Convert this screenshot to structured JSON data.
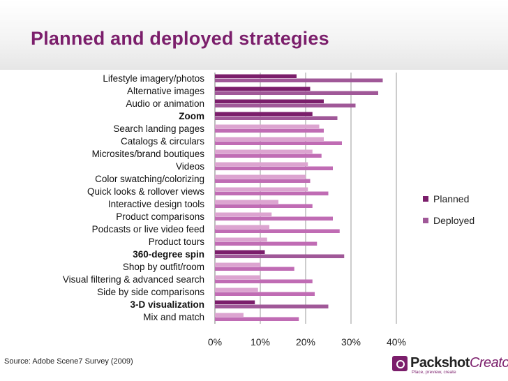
{
  "page": {
    "title": "Planned and deployed strategies",
    "source": "Source: Adobe Scene7 Survey (2009)"
  },
  "logo": {
    "name_part1": "Packshot",
    "name_part2": "Creator",
    "tagline": "Place, preview, create"
  },
  "chart_data": {
    "type": "bar",
    "orientation": "horizontal",
    "title": "Planned and deployed strategies",
    "xlabel": "",
    "ylabel": "",
    "xlim": [
      0,
      40
    ],
    "xticks": [
      "0%",
      "10%",
      "20%",
      "30%",
      "40%"
    ],
    "grid": true,
    "legend_position": "right",
    "categories": [
      "Lifestyle imagery/photos",
      "Alternative images",
      "Audio or animation",
      "Zoom",
      "Search landing pages",
      "Catalogs & circulars",
      "Microsites/brand boutiques",
      "Videos",
      "Color swatching/colorizing",
      "Quick looks & rollover views",
      "Interactive design tools",
      "Product comparisons",
      "Podcasts or live video feed",
      "Product tours",
      "360-degree spin",
      "Shop by outfit/room",
      "Visual filtering & advanced search",
      "Side by side comparisons",
      "3-D visualization",
      "Mix and match"
    ],
    "series": [
      {
        "name": "Planned",
        "color": "#7b1e6b",
        "values": [
          18,
          21,
          24,
          21.5,
          23,
          24,
          21.5,
          20.5,
          20,
          20.5,
          14,
          12.5,
          12,
          11.5,
          11,
          10,
          10,
          9.5,
          8.8,
          6.3
        ]
      },
      {
        "name": "Deployed",
        "color": "#a05898",
        "values": [
          37,
          36,
          31,
          27,
          24,
          28,
          23.5,
          26,
          21,
          25,
          21.5,
          26,
          27.5,
          22.5,
          28.5,
          17.5,
          21.5,
          22,
          25,
          18.5
        ]
      }
    ],
    "styling": {
      "bold_categories": [
        "Zoom",
        "360-degree spin",
        "3-D visualization"
      ],
      "dark_planned_categories": [
        "Lifestyle imagery/photos",
        "Alternative images",
        "Audio or animation",
        "Zoom",
        "360-degree spin",
        "3-D visualization"
      ],
      "planned_light_color": "#dca4d0",
      "deployed_light_color": "#c06cb4"
    }
  }
}
